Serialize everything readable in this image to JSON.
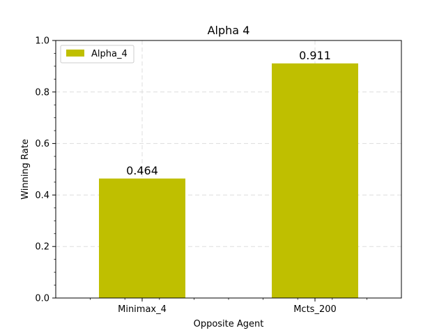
{
  "chart_data": {
    "type": "bar",
    "title": "Alpha 4",
    "xlabel": "Opposite Agent",
    "ylabel": "Winning Rate",
    "categories": [
      "Minimax_4",
      "Mcts_200"
    ],
    "series": [
      {
        "name": "Alpha_4",
        "values": [
          0.464,
          0.911
        ],
        "color": "#bfbf00"
      }
    ],
    "data_labels": [
      "0.464",
      "0.911"
    ],
    "ylim": [
      0,
      1.0
    ],
    "yticks": [
      "0.0",
      "0.2",
      "0.4",
      "0.6",
      "0.8",
      "1.0"
    ],
    "grid": true,
    "legend_position": "top-left"
  }
}
